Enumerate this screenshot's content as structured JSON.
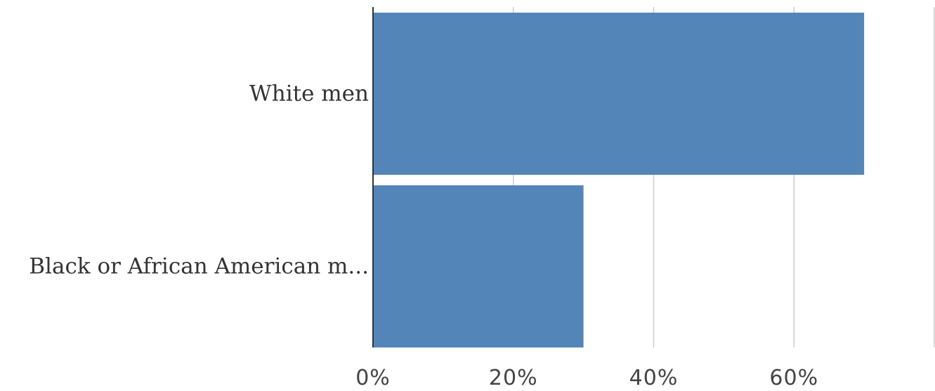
{
  "chart_data": {
    "type": "bar",
    "orientation": "horizontal",
    "categories": [
      "White men",
      "Black or African American m..."
    ],
    "values": [
      70,
      30
    ],
    "xlim": [
      0,
      80
    ],
    "xticks": [
      0,
      20,
      40,
      60,
      80
    ],
    "xtick_labels": [
      "0%",
      "20%",
      "40%",
      "60%",
      ""
    ],
    "grid": true,
    "title": "",
    "xlabel": "",
    "ylabel": "",
    "bar_color": "#5485b9"
  }
}
